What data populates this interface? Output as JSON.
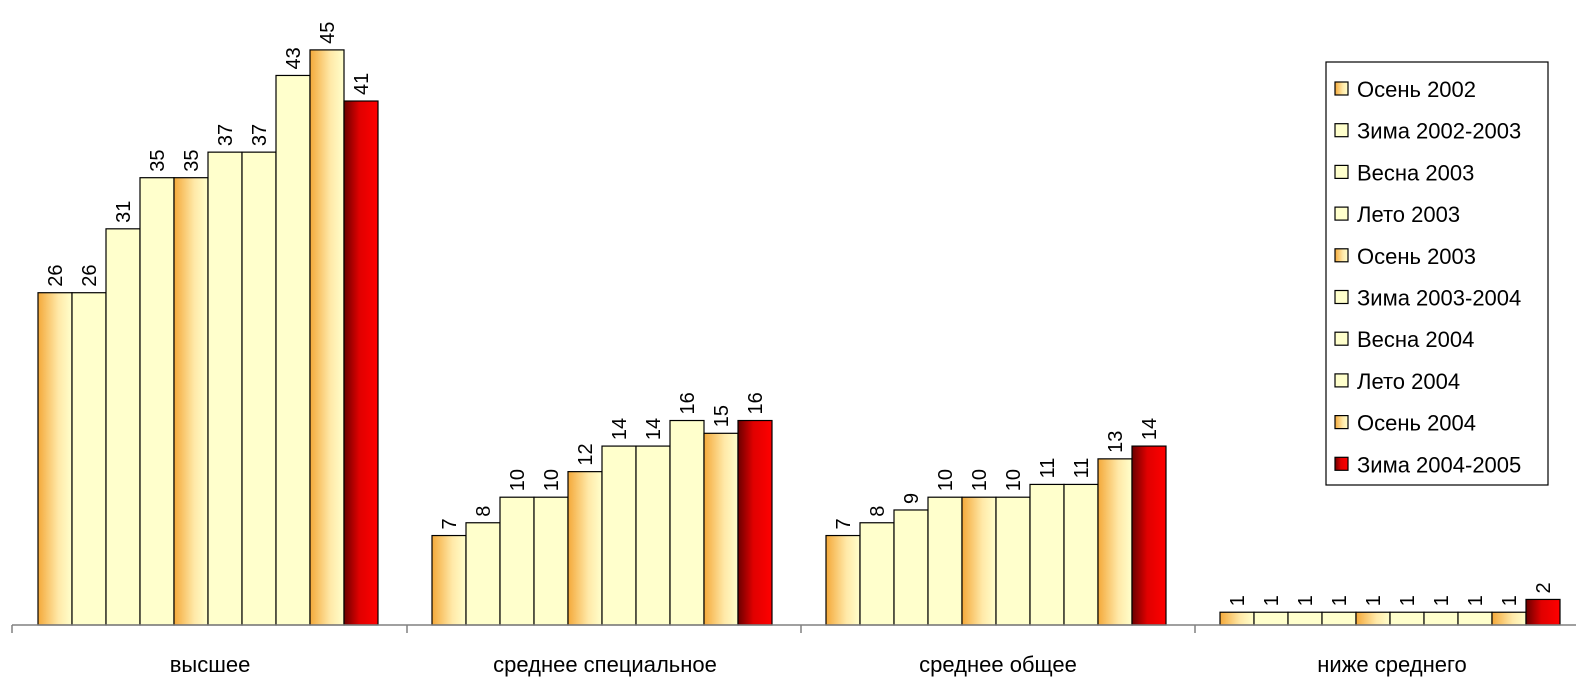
{
  "chart_data": {
    "type": "bar",
    "categories": [
      "высшее",
      "среднее специальное",
      "среднее общее",
      "ниже среднего"
    ],
    "series": [
      {
        "name": "Осень 2002",
        "values": [
          26,
          7,
          7,
          1
        ],
        "style": "orange"
      },
      {
        "name": "Зима 2002-2003",
        "values": [
          26,
          8,
          8,
          1
        ],
        "style": "cream"
      },
      {
        "name": "Весна 2003",
        "values": [
          31,
          10,
          9,
          1
        ],
        "style": "cream"
      },
      {
        "name": "Лето 2003",
        "values": [
          35,
          10,
          10,
          1
        ],
        "style": "cream"
      },
      {
        "name": "Осень 2003",
        "values": [
          35,
          12,
          10,
          1
        ],
        "style": "orange"
      },
      {
        "name": "Зима 2003-2004",
        "values": [
          37,
          14,
          10,
          1
        ],
        "style": "cream"
      },
      {
        "name": "Весна 2004",
        "values": [
          37,
          14,
          11,
          1
        ],
        "style": "cream"
      },
      {
        "name": "Лето 2004",
        "values": [
          43,
          16,
          11,
          1
        ],
        "style": "cream"
      },
      {
        "name": "Осень 2004",
        "values": [
          45,
          15,
          13,
          1
        ],
        "style": "orange"
      },
      {
        "name": "Зима 2004-2005",
        "values": [
          41,
          16,
          14,
          2
        ],
        "style": "red"
      }
    ],
    "title": "",
    "xlabel": "",
    "ylabel": "",
    "ylim": [
      0,
      45
    ],
    "grid": false,
    "legend_position": "right",
    "colors": {
      "cream": "#FFFFCC",
      "orange_start": "#F4A93A",
      "red": "#E00000",
      "dark_red": "#7A0000",
      "outline": "#000000"
    }
  }
}
